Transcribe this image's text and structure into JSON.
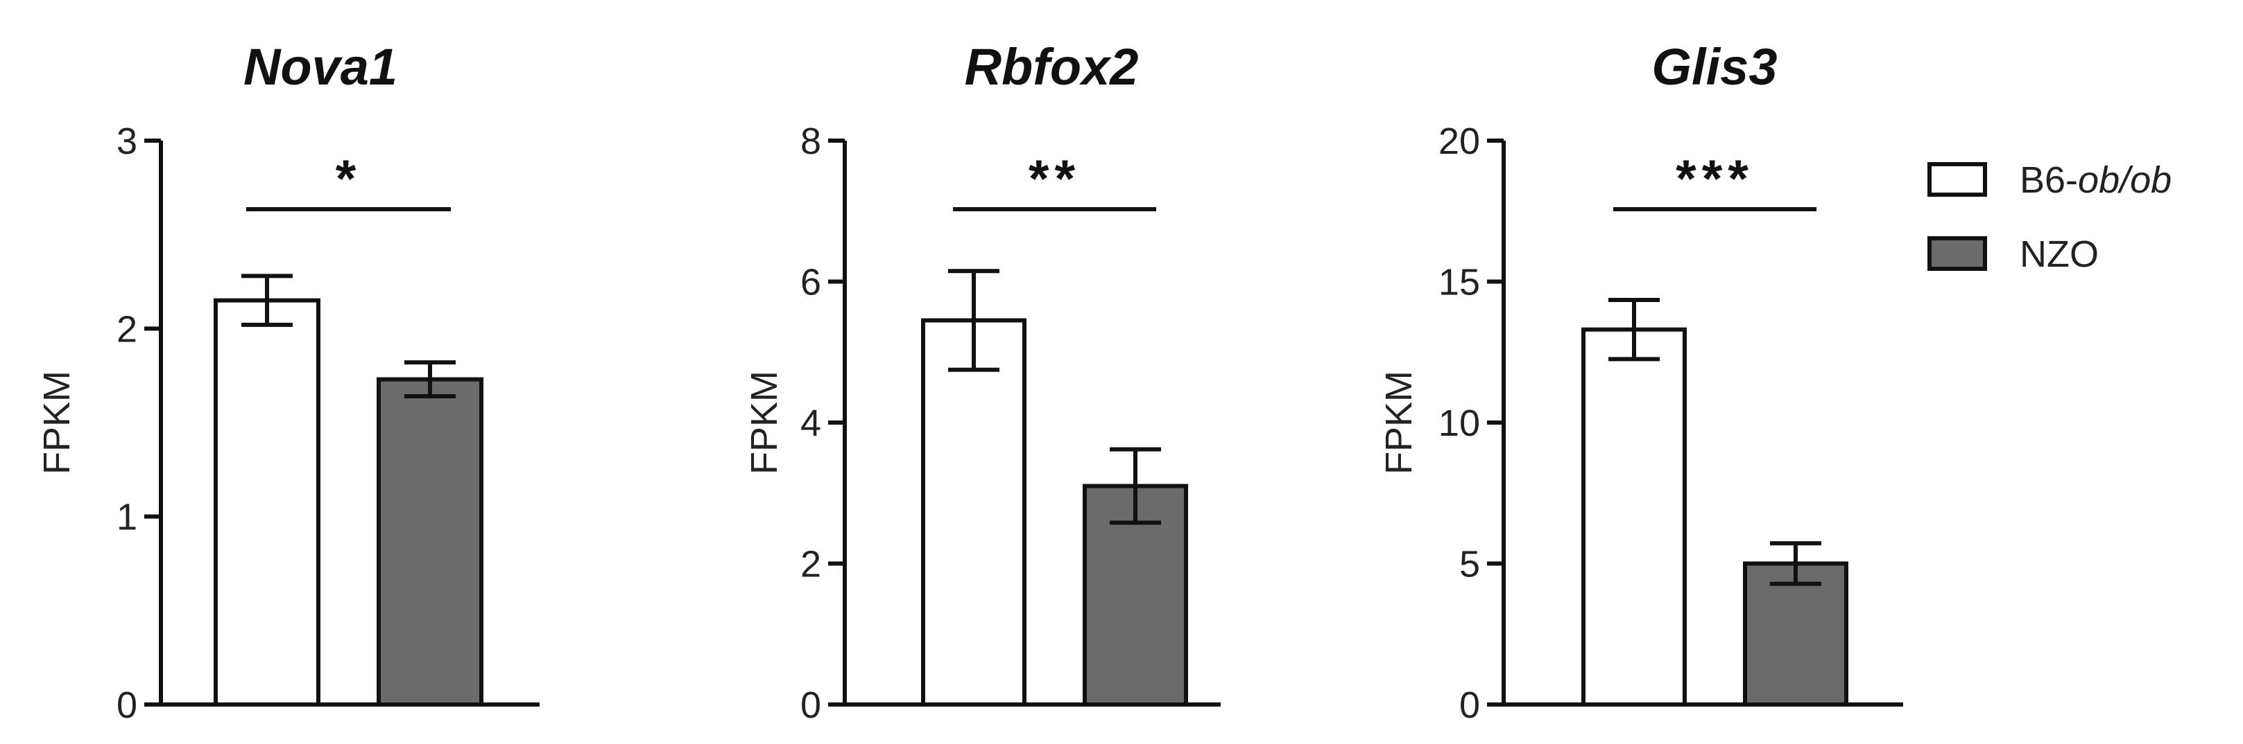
{
  "chart_data": [
    {
      "type": "bar",
      "title": "Nova1",
      "ylabel": "FPKM",
      "ylim": [
        0,
        3
      ],
      "yticks": [
        0,
        1,
        2,
        3
      ],
      "series": [
        {
          "name": "B6-ob/ob",
          "value": 2.15,
          "error": 0.13
        },
        {
          "name": "NZO",
          "value": 1.73,
          "error": 0.09
        }
      ],
      "significance": "*"
    },
    {
      "type": "bar",
      "title": "Rbfox2",
      "ylabel": "FPKM",
      "ylim": [
        0,
        8
      ],
      "yticks": [
        0,
        2,
        4,
        6,
        8
      ],
      "series": [
        {
          "name": "B6-ob/ob",
          "value": 5.45,
          "error": 0.7
        },
        {
          "name": "NZO",
          "value": 3.1,
          "error": 0.52
        }
      ],
      "significance": "**"
    },
    {
      "type": "bar",
      "title": "Glis3",
      "ylabel": "FPKM",
      "ylim": [
        0,
        20
      ],
      "yticks": [
        0,
        5,
        10,
        15,
        20
      ],
      "series": [
        {
          "name": "B6-ob/ob",
          "value": 13.3,
          "error": 1.05
        },
        {
          "name": "NZO",
          "value": 5.0,
          "error": 0.72
        }
      ],
      "significance": "***"
    }
  ],
  "legend": {
    "placement": "top-right",
    "items": [
      {
        "label_plain": "B6-",
        "label_italic": "ob/ob",
        "fill": "#ffffff"
      },
      {
        "label_plain": "NZO",
        "label_italic": "",
        "fill": "#6b6b6b"
      }
    ]
  },
  "colors": {
    "bar_b6": "#ffffff",
    "bar_nzo": "#6b6b6b",
    "stroke": "#111111"
  }
}
